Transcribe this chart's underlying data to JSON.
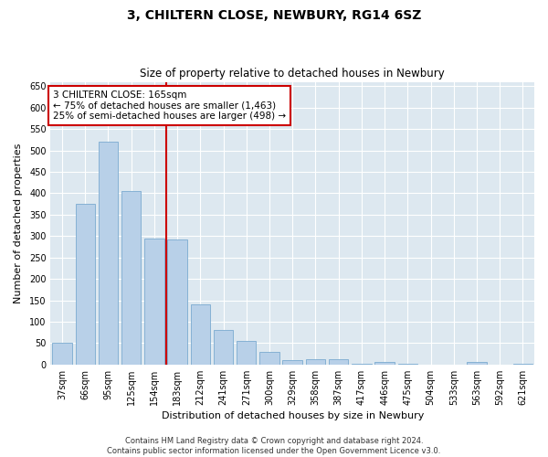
{
  "title": "3, CHILTERN CLOSE, NEWBURY, RG14 6SZ",
  "subtitle": "Size of property relative to detached houses in Newbury",
  "xlabel": "Distribution of detached houses by size in Newbury",
  "ylabel": "Number of detached properties",
  "categories": [
    "37sqm",
    "66sqm",
    "95sqm",
    "125sqm",
    "154sqm",
    "183sqm",
    "212sqm",
    "241sqm",
    "271sqm",
    "300sqm",
    "329sqm",
    "358sqm",
    "387sqm",
    "417sqm",
    "446sqm",
    "475sqm",
    "504sqm",
    "533sqm",
    "563sqm",
    "592sqm",
    "621sqm"
  ],
  "values": [
    50,
    375,
    520,
    405,
    295,
    292,
    140,
    80,
    55,
    30,
    10,
    12,
    12,
    2,
    5,
    2,
    0,
    0,
    5,
    0,
    2
  ],
  "bar_color": "#b8d0e8",
  "bar_edge_color": "#7aaad0",
  "ylim": [
    0,
    660
  ],
  "yticks": [
    0,
    50,
    100,
    150,
    200,
    250,
    300,
    350,
    400,
    450,
    500,
    550,
    600,
    650
  ],
  "redline_index": 4,
  "annotation_line1": "3 CHILTERN CLOSE: 165sqm",
  "annotation_line2": "← 75% of detached houses are smaller (1,463)",
  "annotation_line3": "25% of semi-detached houses are larger (498) →",
  "annotation_box_color": "#ffffff",
  "annotation_box_edge_color": "#cc0000",
  "redline_color": "#cc0000",
  "footer_line1": "Contains HM Land Registry data © Crown copyright and database right 2024.",
  "footer_line2": "Contains public sector information licensed under the Open Government Licence v3.0.",
  "background_color": "#dde8f0",
  "figure_background": "#ffffff",
  "title_fontsize": 10,
  "subtitle_fontsize": 8.5,
  "axis_label_fontsize": 8,
  "tick_fontsize": 7,
  "footer_fontsize": 6
}
